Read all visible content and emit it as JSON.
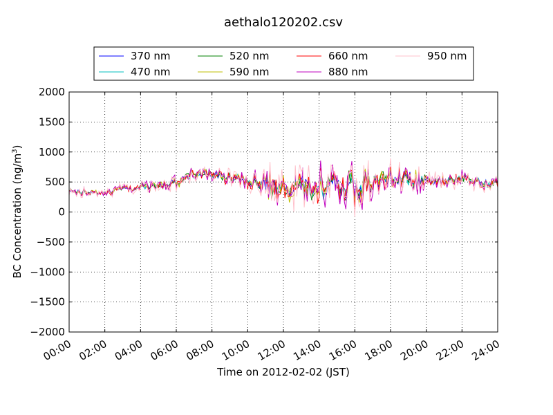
{
  "chart_data": {
    "type": "line",
    "title": "aethalo120202.csv",
    "xlabel": "Time on 2012-02-02 (JST)",
    "ylabel": "BC Concentration (ng/m",
    "ylabel_superscript": "3",
    "ylabel_suffix": ")",
    "xlim": [
      0,
      24
    ],
    "ylim": [
      -2000,
      2000
    ],
    "x_ticks": [
      0,
      2,
      4,
      6,
      8,
      10,
      12,
      14,
      16,
      18,
      20,
      22,
      24
    ],
    "x_tick_labels": [
      "00:00",
      "02:00",
      "04:00",
      "06:00",
      "08:00",
      "10:00",
      "12:00",
      "14:00",
      "16:00",
      "18:00",
      "20:00",
      "22:00",
      "24:00"
    ],
    "y_ticks": [
      -2000,
      -1500,
      -1000,
      -500,
      0,
      500,
      1000,
      1500,
      2000
    ],
    "y_tick_labels": [
      "−2000",
      "−1500",
      "−1000",
      "−500",
      "0",
      "500",
      "1000",
      "1500",
      "2000"
    ],
    "grid": true,
    "legend_position": "top",
    "series": [
      {
        "name": "370 nm",
        "color": "#0000ff"
      },
      {
        "name": "470 nm",
        "color": "#00bfbf"
      },
      {
        "name": "520 nm",
        "color": "#008000"
      },
      {
        "name": "590 nm",
        "color": "#bfbf00"
      },
      {
        "name": "660 nm",
        "color": "#ff0000"
      },
      {
        "name": "880 nm",
        "color": "#bf00bf"
      },
      {
        "name": "950 nm",
        "color": "#ffc0cb"
      }
    ],
    "series_profile": {
      "times": [
        0,
        1,
        2,
        3,
        4,
        5,
        6,
        7,
        8,
        9,
        10,
        11,
        12,
        13,
        14,
        15,
        16,
        17,
        18,
        19,
        20,
        21,
        22,
        23,
        24
      ],
      "approx_mean": [
        350,
        330,
        320,
        380,
        400,
        430,
        500,
        650,
        650,
        550,
        520,
        480,
        450,
        420,
        450,
        450,
        420,
        550,
        600,
        550,
        500,
        520,
        560,
        500,
        450
      ]
    }
  }
}
